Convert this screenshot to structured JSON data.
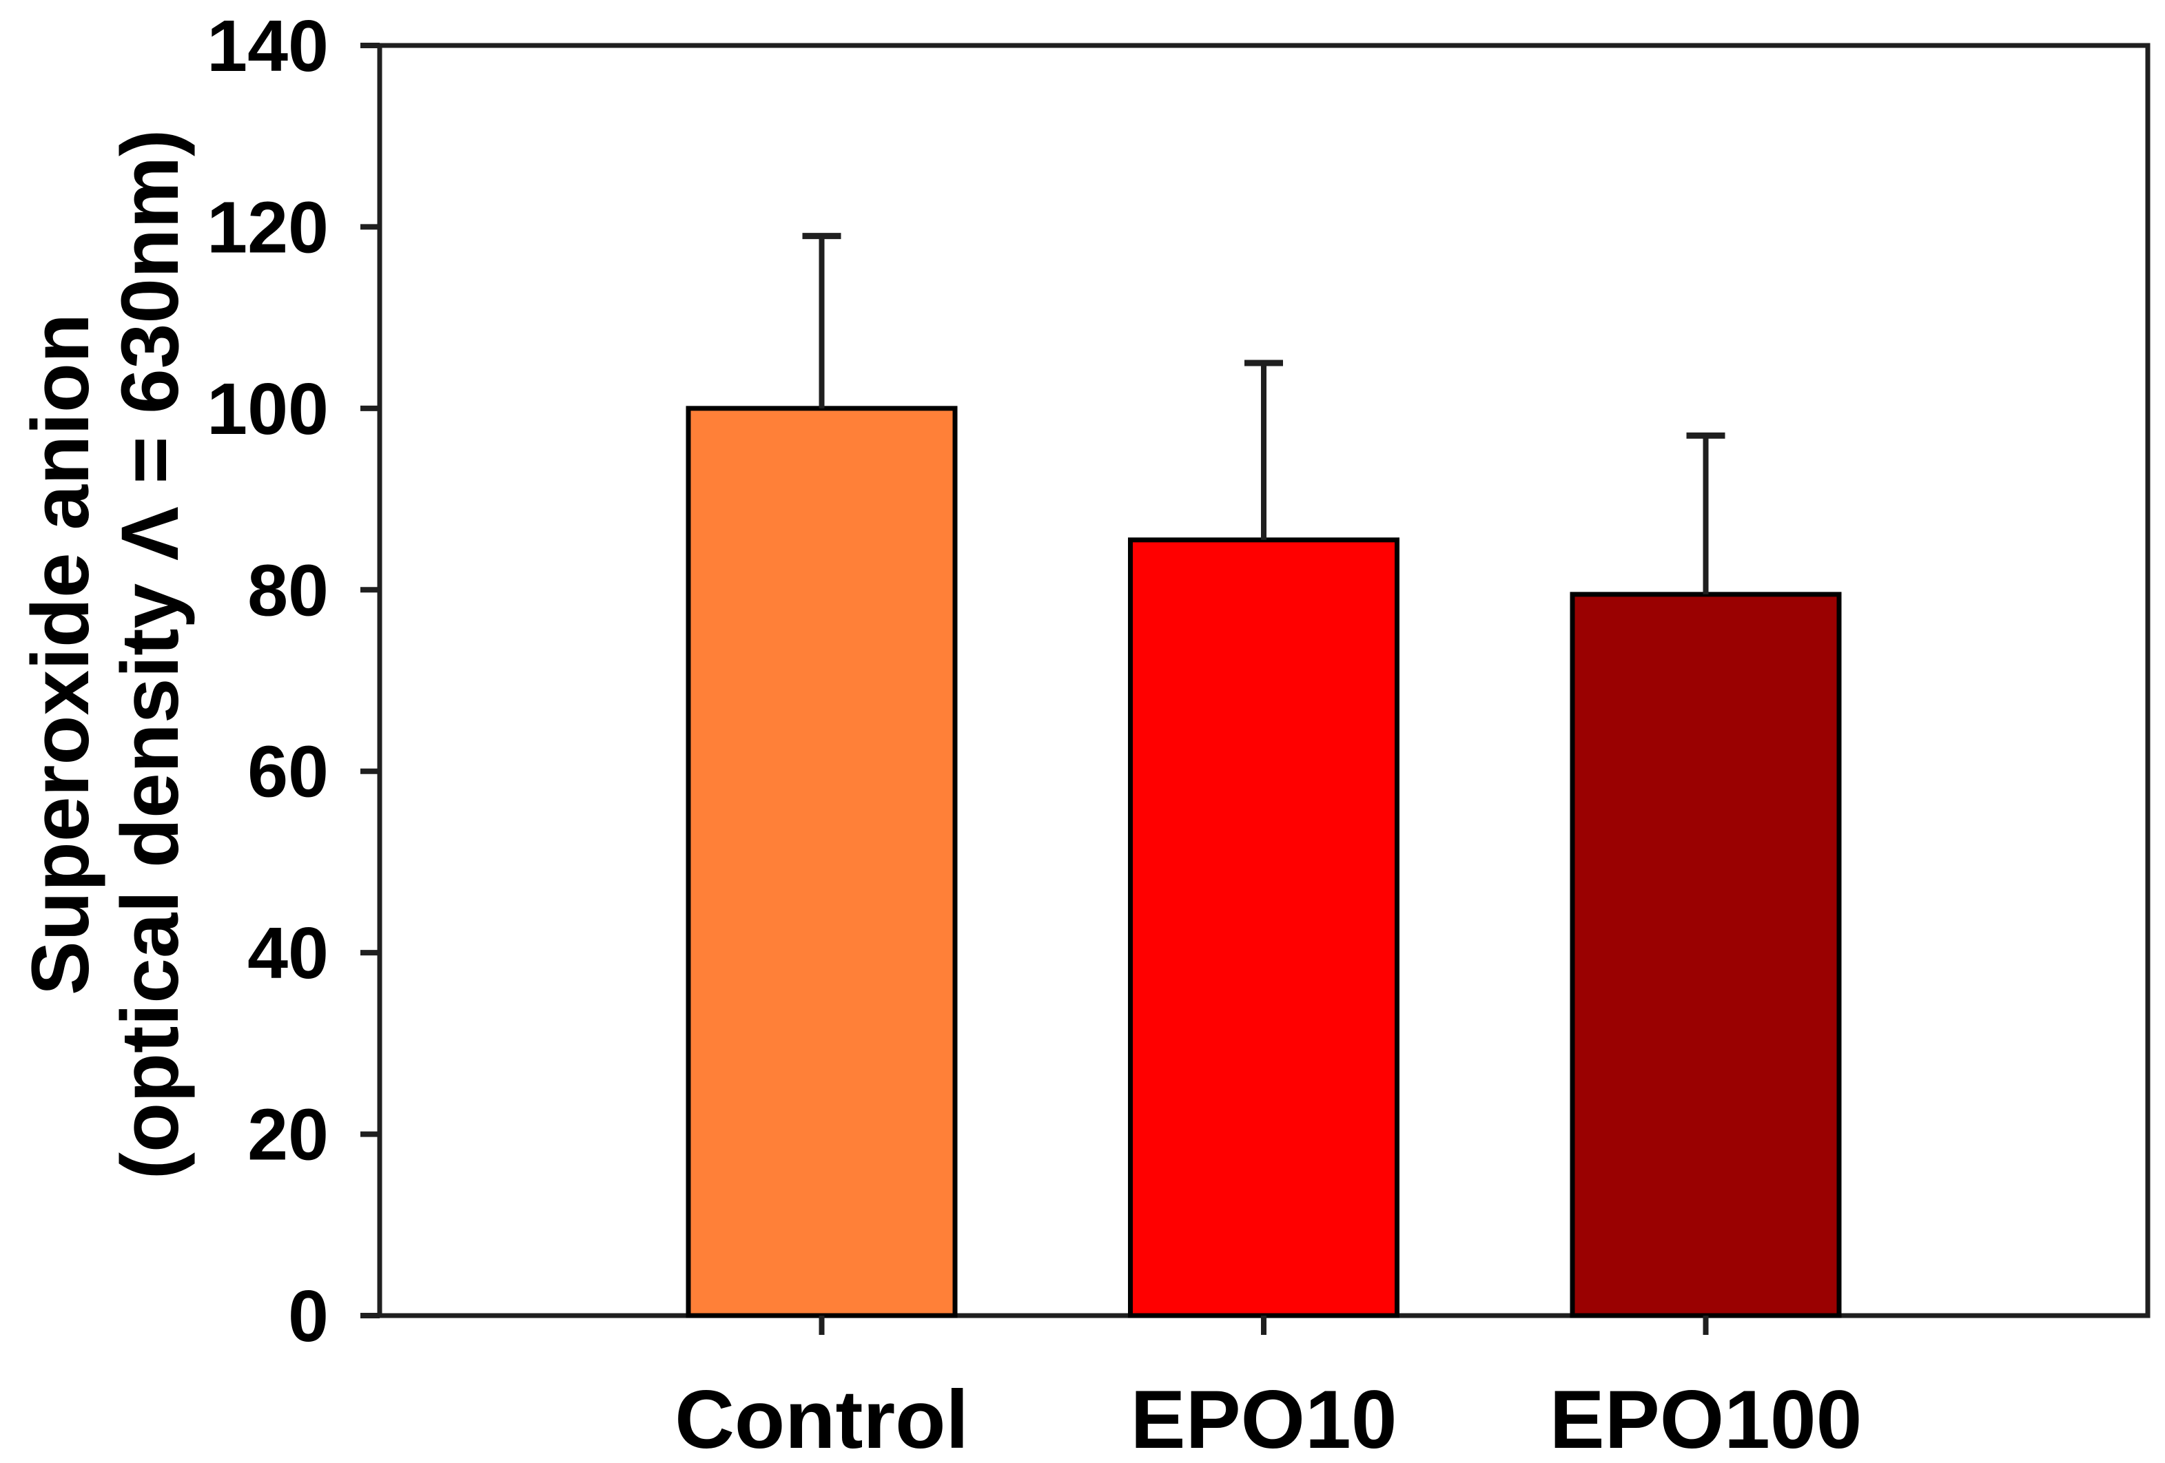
{
  "chart_data": {
    "type": "bar",
    "title": "",
    "categories": [
      "Control",
      "EPO10",
      "EPO100"
    ],
    "values": [
      100,
      85.5,
      79.5
    ],
    "error_plus": [
      19,
      19.5,
      17.5
    ],
    "bar_colors": [
      "#FF8038",
      "#FF0000",
      "#9A0101"
    ],
    "bar_edge_color": "#000000",
    "axis_color": "#1F1F1F",
    "ylabel_line1": "Superoxide anion",
    "ylabel_line2": "(optical density Λ = 630nm)",
    "xlabel": "",
    "ylim": [
      0,
      140
    ],
    "yticks": [
      "0",
      "20",
      "40",
      "60",
      "80",
      "100",
      "120",
      "140"
    ],
    "xtick_labels": [
      "Control",
      "EPO10",
      "EPO100"
    ],
    "grid": false,
    "legend": null,
    "frame": "full-box",
    "error_bar_style": "upper-cap-only"
  }
}
